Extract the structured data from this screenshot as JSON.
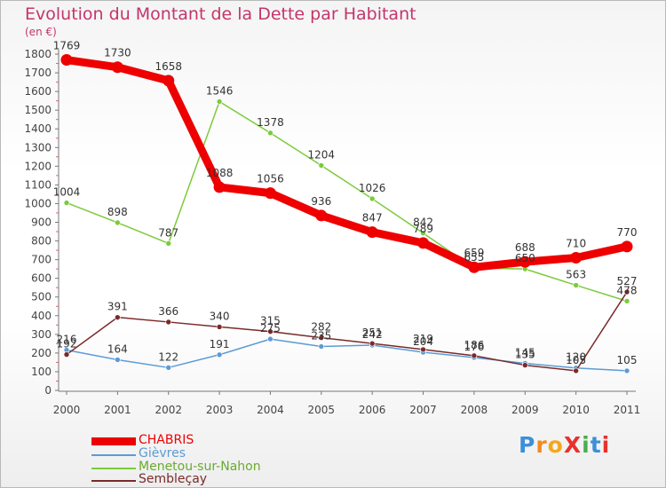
{
  "title": "Evolution du Montant de la Dette par Habitant",
  "unit": "(en €)",
  "logo": "ProXiti",
  "chart_data": {
    "type": "line",
    "title": "Evolution du Montant de la Dette par Habitant",
    "ylabel": "(en €)",
    "xlabel": "",
    "ylim": [
      0,
      1800
    ],
    "yticks": [
      0,
      100,
      200,
      300,
      400,
      500,
      600,
      700,
      800,
      900,
      1000,
      1100,
      1200,
      1300,
      1400,
      1500,
      1600,
      1700,
      1800
    ],
    "x": [
      "2000",
      "2001",
      "2002",
      "2003",
      "2004",
      "2005",
      "2006",
      "2007",
      "2008",
      "2009",
      "2010",
      "2011"
    ],
    "grid": false,
    "legend_position": "bottom-left",
    "series": [
      {
        "name": "CHABRIS",
        "color": "#ee0000",
        "values": [
          1769,
          1730,
          1658,
          1088,
          1056,
          936,
          847,
          789,
          659,
          688,
          710,
          770
        ],
        "labels": [
          "1769",
          "1730",
          "1658",
          "1088",
          "1056",
          "936",
          "847",
          "789",
          "659",
          "688",
          "710",
          "770"
        ]
      },
      {
        "name": "Gièvres",
        "color": "#5b9bd5",
        "values": [
          216,
          164,
          122,
          191,
          275,
          235,
          242,
          204,
          176,
          145,
          120,
          105
        ],
        "labels": [
          "216",
          "164",
          "122",
          "191",
          "275",
          "235",
          "242",
          "204",
          "176",
          "145",
          "120",
          "105"
        ]
      },
      {
        "name": "Menetou-sur-Nahon",
        "color": "#7ccb3a",
        "values": [
          1004,
          898,
          787,
          1546,
          1378,
          1204,
          1026,
          842,
          655,
          650,
          563,
          478
        ],
        "labels": [
          "1004",
          "898",
          "787",
          "1546",
          "1378",
          "1204",
          "1026",
          "842",
          "655",
          "650",
          "563",
          "478"
        ]
      },
      {
        "name": "Sembleçay",
        "color": "#7a2a2a",
        "values": [
          192,
          391,
          366,
          340,
          315,
          282,
          251,
          219,
          186,
          135,
          105,
          527
        ],
        "labels": [
          "192",
          "391",
          "366",
          "340",
          "315",
          "282",
          "251",
          "219",
          "186",
          "135",
          "105",
          "527"
        ]
      }
    ]
  }
}
